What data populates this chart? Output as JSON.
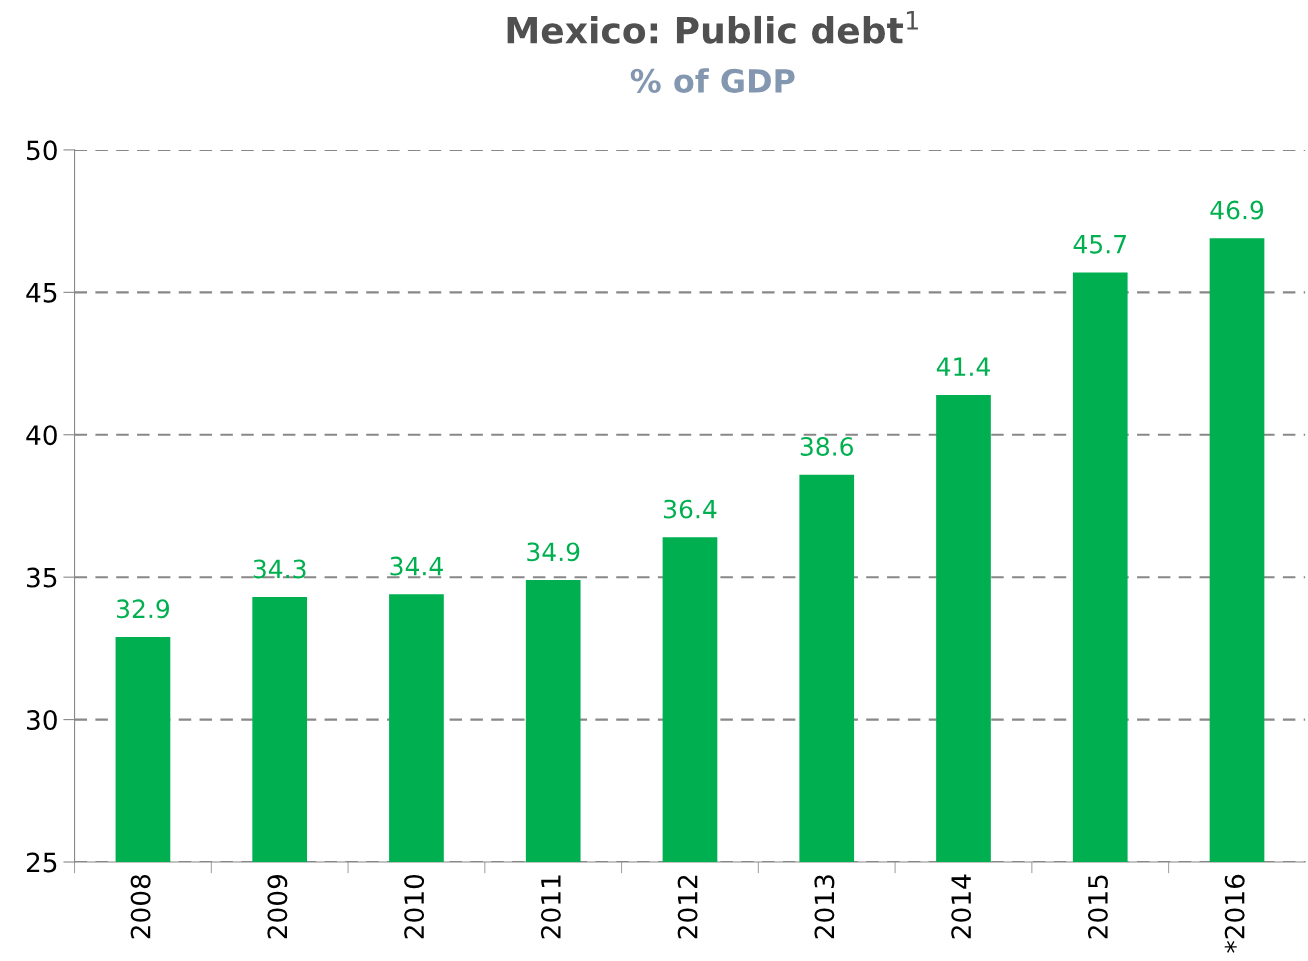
{
  "chart_data": {
    "type": "bar",
    "title": "Mexico: Public debt$^{1}$",
    "subtitle": "% of GDP",
    "categories": [
      "2008",
      "2009",
      "2010",
      "2011",
      "2012",
      "2013",
      "2014",
      "2015",
      "*2016"
    ],
    "values": [
      32.9,
      34.3,
      34.4,
      34.9,
      36.4,
      38.6,
      41.4,
      45.7,
      46.9
    ],
    "color": "#00b050",
    "ylim": [
      25,
      50
    ],
    "yticks": [
      25,
      30,
      35,
      40,
      45,
      50
    ],
    "grid": "y",
    "data_labels": true
  }
}
